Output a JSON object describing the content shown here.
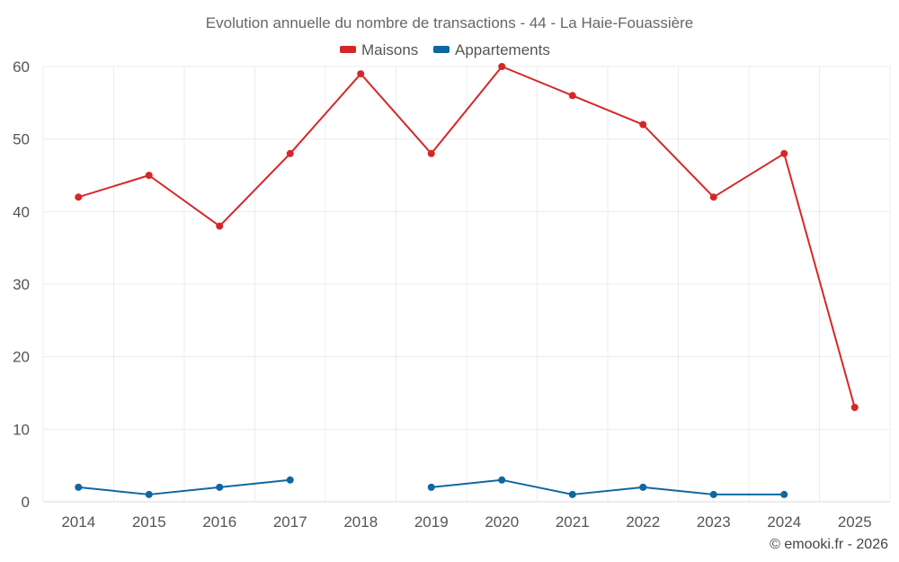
{
  "chart_data": {
    "type": "line",
    "title": "Evolution annuelle du nombre de transactions - 44 - La Haie-Fouassière",
    "categories": [
      "2014",
      "2015",
      "2016",
      "2017",
      "2018",
      "2019",
      "2020",
      "2021",
      "2022",
      "2023",
      "2024",
      "2025"
    ],
    "ylim": [
      0,
      60
    ],
    "yticks": [
      0,
      10,
      20,
      30,
      40,
      50,
      60
    ],
    "grid": true,
    "legend_position": "top-center",
    "series": [
      {
        "name": "Maisons",
        "color": "#d62728",
        "values": [
          42,
          45,
          38,
          48,
          59,
          48,
          60,
          56,
          52,
          42,
          48,
          13
        ]
      },
      {
        "name": "Appartements",
        "color": "#0f67a0",
        "values": [
          2,
          1,
          2,
          3,
          null,
          2,
          3,
          1,
          2,
          1,
          1,
          null
        ]
      }
    ]
  },
  "credit": "© emooki.fr - 2026"
}
